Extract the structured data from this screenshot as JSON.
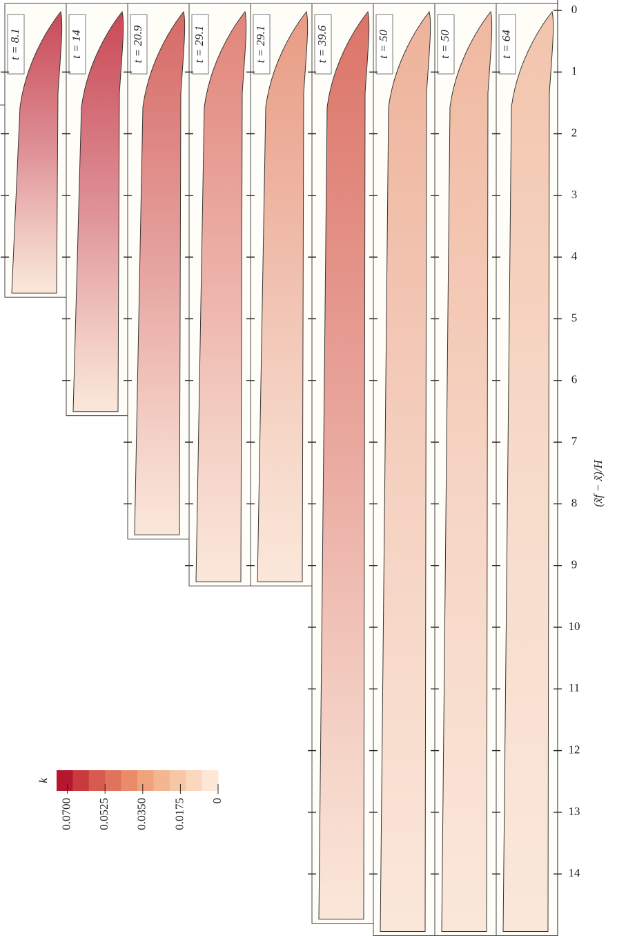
{
  "figure": {
    "axis_label": "(x̃f − x̃)/H",
    "ylim": [
      0,
      15
    ],
    "yticks": [
      0,
      1,
      2,
      3,
      4,
      5,
      6,
      7,
      8,
      9,
      10,
      11,
      12,
      13,
      14
    ],
    "panels": [
      {
        "label": "t = 8.1",
        "end": 4.65,
        "shade": "#c94a57"
      },
      {
        "label": "t = 14",
        "end": 6.57,
        "shade": "#c94a57"
      },
      {
        "label": "t = 20.9",
        "end": 8.57,
        "shade": "#d66a66"
      },
      {
        "label": "t = 29.1",
        "end": 9.33,
        "shade": "#e1857a"
      },
      {
        "label": "t = 29.1",
        "end": 9.33,
        "shade": "#e89c84"
      },
      {
        "label": "t = 39.6",
        "end": 14.8,
        "shade": "#dc7468"
      },
      {
        "label": "t = 50",
        "end": 15,
        "shade": "#eeb29a"
      },
      {
        "label": "t = 50",
        "end": 15,
        "shade": "#f0b8a0"
      },
      {
        "label": "t = 64",
        "end": 15,
        "shade": "#f2c4ac"
      }
    ],
    "colorbar": {
      "label": "k",
      "lim": [
        0.075,
        0
      ],
      "colors": [
        "#b5172f",
        "#c93a3f",
        "#d65a4f",
        "#e0735c",
        "#ea8c6a",
        "#f0a27c",
        "#f4b690",
        "#f7c7a5",
        "#fad7bd",
        "#fde8d8"
      ],
      "ticks": [
        {
          "value": 0.07,
          "label": "0.0700"
        },
        {
          "value": 0.0525,
          "label": "0.0525"
        },
        {
          "value": 0.035,
          "label": "0.0350"
        },
        {
          "value": 0.0175,
          "label": "0.0175"
        },
        0
      ]
    }
  }
}
